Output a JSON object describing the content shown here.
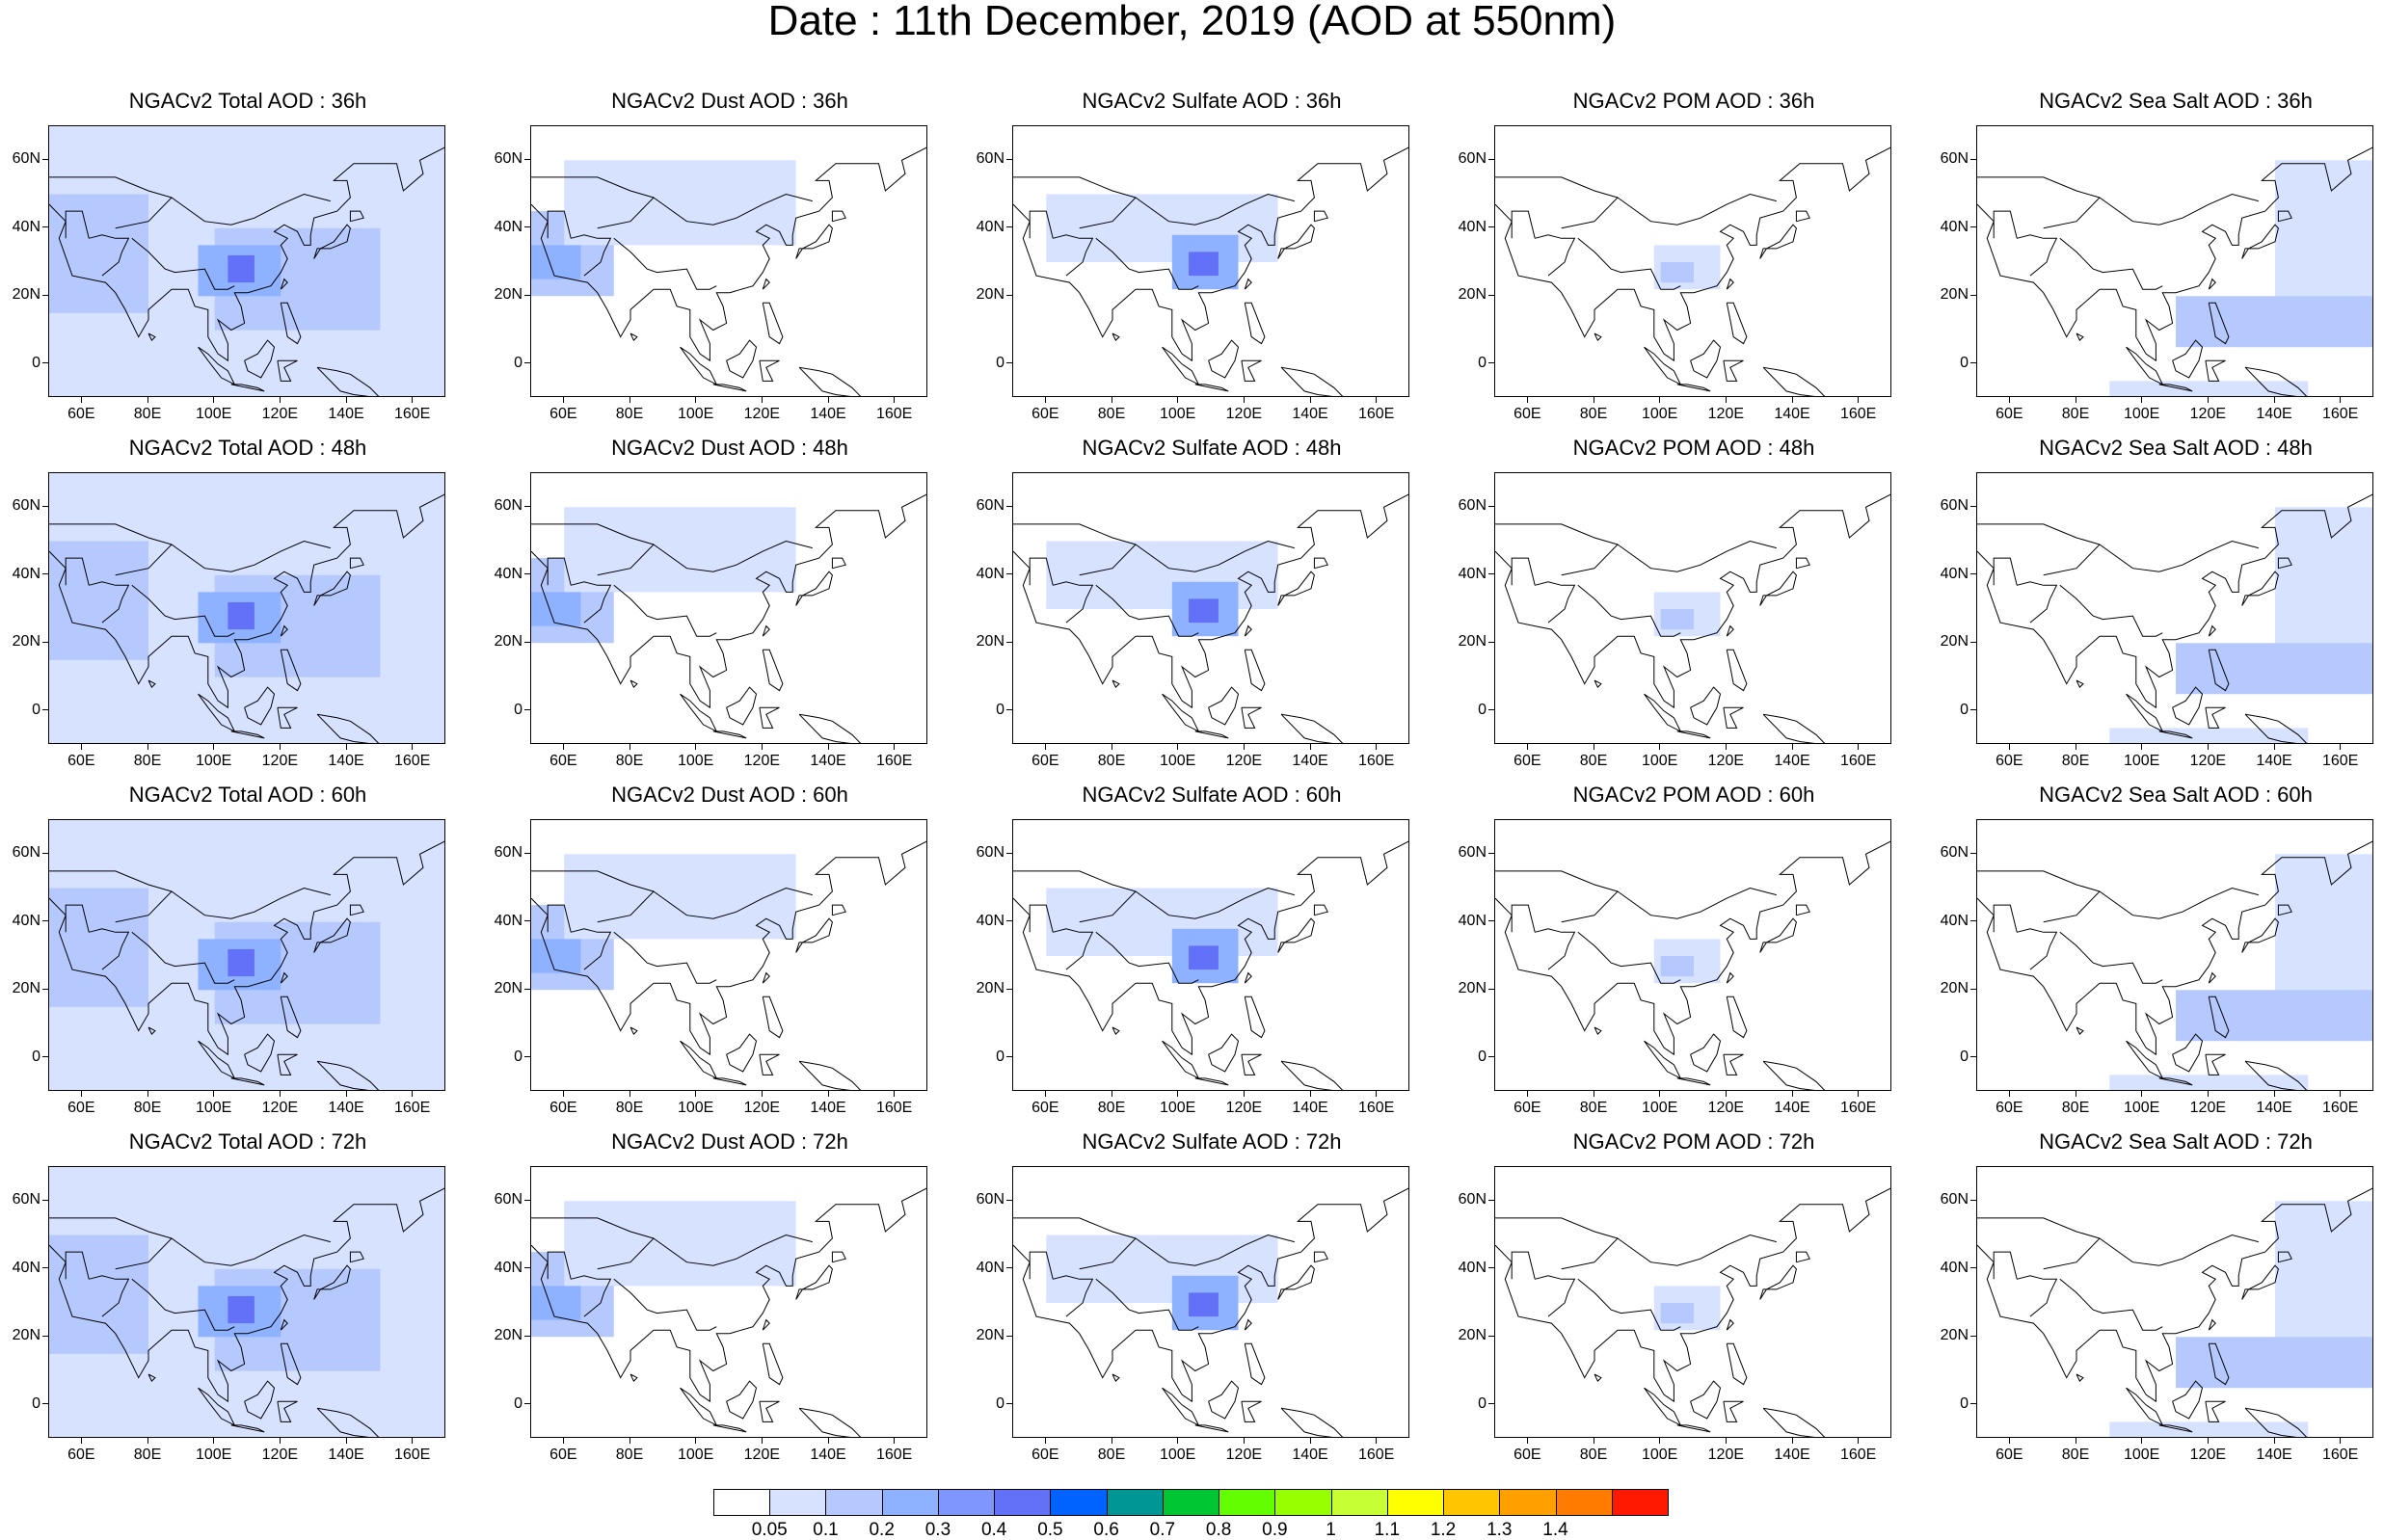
{
  "title": "Date : 11th December, 2019 (AOD at 550nm)",
  "map": {
    "extent": {
      "lon_min": 50,
      "lon_max": 170,
      "lat_min": -10,
      "lat_max": 70
    },
    "lat_ticks": [
      {
        "value": 60,
        "label": "60N"
      },
      {
        "value": 40,
        "label": "40N"
      },
      {
        "value": 20,
        "label": "20N"
      },
      {
        "value": 0,
        "label": "0"
      }
    ],
    "lon_ticks": [
      {
        "value": 60,
        "label": "60E"
      },
      {
        "value": 80,
        "label": "80E"
      },
      {
        "value": 100,
        "label": "100E"
      },
      {
        "value": 120,
        "label": "120E"
      },
      {
        "value": 140,
        "label": "140E"
      },
      {
        "value": 160,
        "label": "160E"
      }
    ]
  },
  "panels": [
    [
      "NGACv2 Total AOD : 36h",
      "NGACv2 Dust AOD : 36h",
      "NGACv2 Sulfate AOD : 36h",
      "NGACv2 POM AOD : 36h",
      "NGACv2 Sea Salt AOD : 36h"
    ],
    [
      "NGACv2 Total AOD : 48h",
      "NGACv2 Dust AOD : 48h",
      "NGACv2 Sulfate AOD : 48h",
      "NGACv2 POM AOD : 48h",
      "NGACv2 Sea Salt AOD : 48h"
    ],
    [
      "NGACv2 Total AOD : 60h",
      "NGACv2 Dust AOD : 60h",
      "NGACv2 Sulfate AOD : 60h",
      "NGACv2 POM AOD : 60h",
      "NGACv2 Sea Salt AOD : 60h"
    ],
    [
      "NGACv2 Total AOD : 72h",
      "NGACv2 Dust AOD : 72h",
      "NGACv2 Sulfate AOD : 72h",
      "NGACv2 POM AOD : 72h",
      "NGACv2 Sea Salt  AOD : 72h"
    ]
  ],
  "colorbar": {
    "labels": [
      "0.05",
      "0.1",
      "0.2",
      "0.3",
      "0.4",
      "0.5",
      "0.6",
      "0.7",
      "0.8",
      "0.9",
      "1",
      "1.1",
      "1.2",
      "1.3",
      "1.4"
    ],
    "colors": [
      "#ffffff",
      "#d6e2ff",
      "#b5c9ff",
      "#8eb2ff",
      "#7f96ff",
      "#6370f8",
      "#0063ff",
      "#009696",
      "#00c633",
      "#63ff00",
      "#96ff00",
      "#c6ff33",
      "#ffff00",
      "#ffc600",
      "#ffa000",
      "#ff7c00",
      "#ff1900"
    ]
  }
}
